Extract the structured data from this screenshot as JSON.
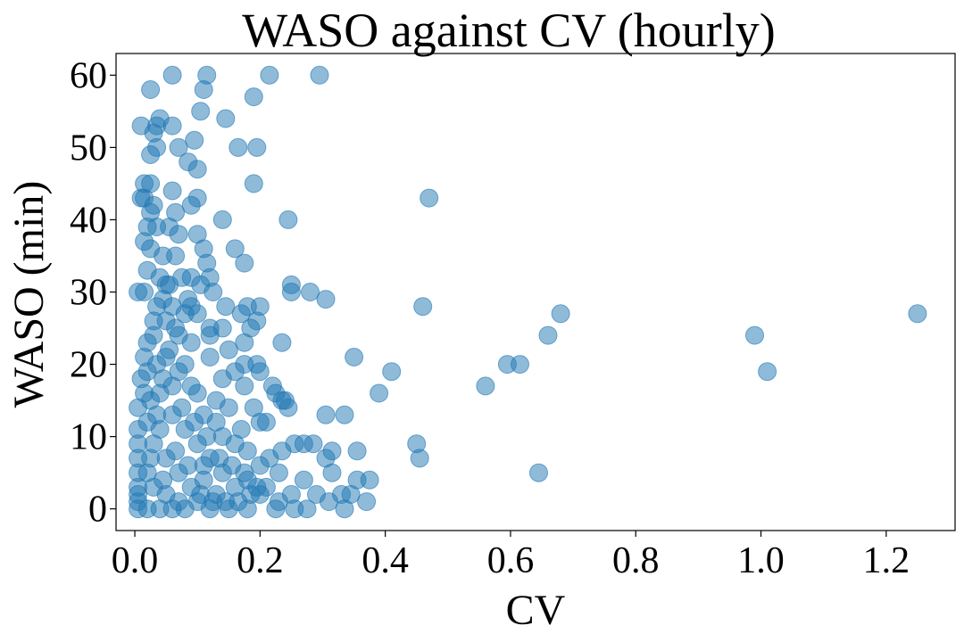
{
  "chart_data": {
    "type": "scatter",
    "title": "WASO against CV (hourly)",
    "xlabel": "CV",
    "ylabel": "WASO (min)",
    "xlim": [
      -0.03,
      1.31
    ],
    "ylim": [
      -3,
      63
    ],
    "xticks": [
      0.0,
      0.2,
      0.4,
      0.6,
      0.8,
      1.0,
      1.2
    ],
    "xtick_labels": [
      "0.0",
      "0.2",
      "0.4",
      "0.6",
      "0.8",
      "1.0",
      "1.2"
    ],
    "yticks": [
      0,
      10,
      20,
      30,
      40,
      50,
      60
    ],
    "ytick_labels": [
      "0",
      "10",
      "20",
      "30",
      "40",
      "50",
      "60"
    ],
    "grid": false,
    "legend": "none",
    "marker_color": "#1f77b4",
    "marker_alpha": 0.5,
    "points": [
      [
        0.06,
        60
      ],
      [
        0.115,
        60
      ],
      [
        0.215,
        60
      ],
      [
        0.295,
        60
      ],
      [
        0.025,
        58
      ],
      [
        0.11,
        58
      ],
      [
        0.19,
        57
      ],
      [
        0.105,
        55
      ],
      [
        0.145,
        54
      ],
      [
        0.04,
        54
      ],
      [
        0.01,
        53
      ],
      [
        0.035,
        53
      ],
      [
        0.06,
        53
      ],
      [
        0.03,
        52
      ],
      [
        0.095,
        51
      ],
      [
        0.035,
        50
      ],
      [
        0.07,
        50
      ],
      [
        0.165,
        50
      ],
      [
        0.195,
        50
      ],
      [
        0.025,
        49
      ],
      [
        0.085,
        48
      ],
      [
        0.1,
        47
      ],
      [
        0.015,
        45
      ],
      [
        0.025,
        45
      ],
      [
        0.19,
        45
      ],
      [
        0.06,
        44
      ],
      [
        0.01,
        43
      ],
      [
        0.015,
        43
      ],
      [
        0.1,
        43
      ],
      [
        0.47,
        43
      ],
      [
        0.03,
        42
      ],
      [
        0.09,
        42
      ],
      [
        0.025,
        41
      ],
      [
        0.065,
        41
      ],
      [
        0.14,
        40
      ],
      [
        0.245,
        40
      ],
      [
        0.035,
        39
      ],
      [
        0.055,
        39
      ],
      [
        0.02,
        39
      ],
      [
        0.1,
        38
      ],
      [
        0.07,
        38
      ],
      [
        0.015,
        37
      ],
      [
        0.11,
        36
      ],
      [
        0.16,
        36
      ],
      [
        0.025,
        36
      ],
      [
        0.045,
        35
      ],
      [
        0.065,
        35
      ],
      [
        0.115,
        34
      ],
      [
        0.175,
        34
      ],
      [
        0.02,
        33
      ],
      [
        0.04,
        32
      ],
      [
        0.075,
        32
      ],
      [
        0.09,
        32
      ],
      [
        0.12,
        32
      ],
      [
        0.05,
        31
      ],
      [
        0.25,
        31
      ],
      [
        0.005,
        30
      ],
      [
        0.015,
        30
      ],
      [
        0.125,
        30
      ],
      [
        0.25,
        30
      ],
      [
        0.28,
        30
      ],
      [
        0.305,
        29
      ],
      [
        0.46,
        28
      ],
      [
        0.18,
        28
      ],
      [
        0.2,
        28
      ],
      [
        0.145,
        28
      ],
      [
        0.09,
        28
      ],
      [
        0.68,
        27
      ],
      [
        1.25,
        27
      ],
      [
        0.17,
        27
      ],
      [
        0.195,
        26
      ],
      [
        0.12,
        25
      ],
      [
        0.185,
        25
      ],
      [
        0.66,
        24
      ],
      [
        0.99,
        24
      ],
      [
        0.235,
        23
      ],
      [
        0.175,
        23
      ],
      [
        0.15,
        22
      ],
      [
        0.35,
        21
      ],
      [
        0.595,
        20
      ],
      [
        0.615,
        20
      ],
      [
        0.175,
        20
      ],
      [
        0.195,
        20
      ],
      [
        0.41,
        19
      ],
      [
        1.01,
        19
      ],
      [
        0.2,
        19
      ],
      [
        0.14,
        18
      ],
      [
        0.175,
        17
      ],
      [
        0.22,
        17
      ],
      [
        0.56,
        17
      ],
      [
        0.39,
        16
      ],
      [
        0.225,
        16
      ],
      [
        0.235,
        15
      ],
      [
        0.24,
        15
      ],
      [
        0.245,
        14
      ],
      [
        0.19,
        14
      ],
      [
        0.305,
        13
      ],
      [
        0.335,
        13
      ],
      [
        0.2,
        12
      ],
      [
        0.21,
        12
      ],
      [
        0.17,
        11
      ],
      [
        0.45,
        9
      ],
      [
        0.255,
        9
      ],
      [
        0.27,
        9
      ],
      [
        0.285,
        9
      ],
      [
        0.315,
        8
      ],
      [
        0.355,
        8
      ],
      [
        0.235,
        8
      ],
      [
        0.455,
        7
      ],
      [
        0.305,
        7
      ],
      [
        0.215,
        7
      ],
      [
        0.645,
        5
      ],
      [
        0.315,
        5
      ],
      [
        0.23,
        5
      ],
      [
        0.27,
        4
      ],
      [
        0.355,
        4
      ],
      [
        0.375,
        4
      ],
      [
        0.21,
        3
      ],
      [
        0.25,
        2
      ],
      [
        0.29,
        2
      ],
      [
        0.33,
        2
      ],
      [
        0.345,
        2
      ],
      [
        0.31,
        1
      ],
      [
        0.37,
        1
      ],
      [
        0.225,
        0
      ],
      [
        0.255,
        0
      ],
      [
        0.275,
        0
      ],
      [
        0.335,
        0
      ],
      [
        0.18,
        0
      ],
      [
        0.15,
        0
      ],
      [
        0.005,
        14
      ],
      [
        0.005,
        11
      ],
      [
        0.005,
        9
      ],
      [
        0.005,
        7
      ],
      [
        0.005,
        5
      ],
      [
        0.005,
        3
      ],
      [
        0.005,
        2
      ],
      [
        0.005,
        1
      ],
      [
        0.005,
        0
      ],
      [
        0.02,
        23
      ],
      [
        0.02,
        19
      ],
      [
        0.03,
        26
      ],
      [
        0.045,
        29
      ],
      [
        0.06,
        28
      ],
      [
        0.08,
        27
      ],
      [
        0.1,
        27
      ],
      [
        0.12,
        24
      ],
      [
        0.14,
        25
      ],
      [
        0.16,
        19
      ],
      [
        0.15,
        14
      ],
      [
        0.13,
        12
      ],
      [
        0.16,
        9
      ],
      [
        0.18,
        8
      ],
      [
        0.2,
        6
      ],
      [
        0.18,
        4
      ],
      [
        0.2,
        2
      ],
      [
        0.23,
        1
      ],
      [
        0.13,
        2
      ],
      [
        0.1,
        1
      ],
      [
        0.08,
        0
      ],
      [
        0.04,
        0
      ],
      [
        0.06,
        0
      ],
      [
        0.12,
        0
      ],
      [
        0.02,
        0
      ],
      [
        0.16,
        3
      ],
      [
        0.11,
        6
      ],
      [
        0.1,
        16
      ],
      [
        0.12,
        21
      ],
      [
        0.09,
        23
      ],
      [
        0.07,
        24
      ],
      [
        0.05,
        26
      ],
      [
        0.03,
        24
      ],
      [
        0.05,
        21
      ],
      [
        0.07,
        19
      ],
      [
        0.09,
        17
      ],
      [
        0.11,
        13
      ],
      [
        0.13,
        15
      ],
      [
        0.14,
        10
      ],
      [
        0.08,
        11
      ],
      [
        0.06,
        13
      ],
      [
        0.04,
        16
      ],
      [
        0.02,
        12
      ],
      [
        0.03,
        9
      ],
      [
        0.05,
        7
      ],
      [
        0.07,
        5
      ],
      [
        0.09,
        3
      ],
      [
        0.11,
        4
      ],
      [
        0.03,
        3
      ],
      [
        0.05,
        2
      ],
      [
        0.07,
        1
      ],
      [
        0.02,
        5
      ],
      [
        0.04,
        11
      ],
      [
        0.06,
        17
      ],
      [
        0.08,
        20
      ],
      [
        0.1,
        9
      ],
      [
        0.12,
        7
      ],
      [
        0.14,
        5
      ],
      [
        0.01,
        18
      ],
      [
        0.015,
        16
      ],
      [
        0.035,
        20
      ],
      [
        0.055,
        22
      ],
      [
        0.075,
        14
      ],
      [
        0.095,
        12
      ],
      [
        0.115,
        10
      ],
      [
        0.135,
        7
      ],
      [
        0.155,
        6
      ],
      [
        0.175,
        5
      ],
      [
        0.195,
        3
      ],
      [
        0.045,
        4
      ],
      [
        0.065,
        8
      ],
      [
        0.085,
        6
      ],
      [
        0.105,
        2
      ],
      [
        0.125,
        1
      ],
      [
        0.145,
        1
      ],
      [
        0.165,
        1
      ],
      [
        0.185,
        2
      ],
      [
        0.025,
        7
      ],
      [
        0.035,
        13
      ],
      [
        0.045,
        18
      ],
      [
        0.065,
        25
      ],
      [
        0.085,
        29
      ],
      [
        0.105,
        31
      ],
      [
        0.055,
        31
      ],
      [
        0.035,
        28
      ],
      [
        0.015,
        21
      ],
      [
        0.025,
        15
      ]
    ]
  }
}
